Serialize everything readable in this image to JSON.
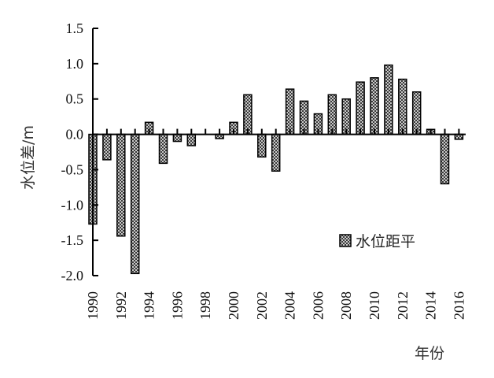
{
  "chart_data": {
    "type": "bar",
    "title": "",
    "xlabel": "年份",
    "ylabel": "水位差/m",
    "ylim": [
      -2.0,
      1.5
    ],
    "yticks": [
      "1.5",
      "1.0",
      "0.5",
      "0.0",
      "-0.5",
      "-1.0",
      "-1.5",
      "-2.0"
    ],
    "ytick_values": [
      1.5,
      1.0,
      0.5,
      0.0,
      -0.5,
      -1.0,
      -1.5,
      -2.0
    ],
    "xtick_labels": [
      "1990",
      "1992",
      "1994",
      "1996",
      "1998",
      "2000",
      "2002",
      "2004",
      "2006",
      "2008",
      "2010",
      "2012",
      "2014",
      "2016"
    ],
    "legend_position": "bottom-right",
    "grid": false,
    "series": [
      {
        "name": "水位距平",
        "fill": "checkered dark gray",
        "categories": [
          "1990",
          "1991",
          "1992",
          "1993",
          "1994",
          "1995",
          "1996",
          "1997",
          "1998",
          "1999",
          "2000",
          "2001",
          "2002",
          "2003",
          "2004",
          "2005",
          "2006",
          "2007",
          "2008",
          "2009",
          "2010",
          "2011",
          "2012",
          "2013",
          "2014",
          "2015",
          "2016"
        ],
        "values": [
          -1.27,
          -0.36,
          -1.44,
          -1.97,
          0.17,
          -0.41,
          -0.1,
          -0.16,
          0.0,
          -0.06,
          0.17,
          0.56,
          -0.32,
          -0.52,
          0.64,
          0.47,
          0.29,
          0.56,
          0.5,
          0.74,
          0.8,
          0.98,
          0.78,
          0.6,
          0.07,
          -0.7,
          -0.07
        ]
      }
    ]
  }
}
